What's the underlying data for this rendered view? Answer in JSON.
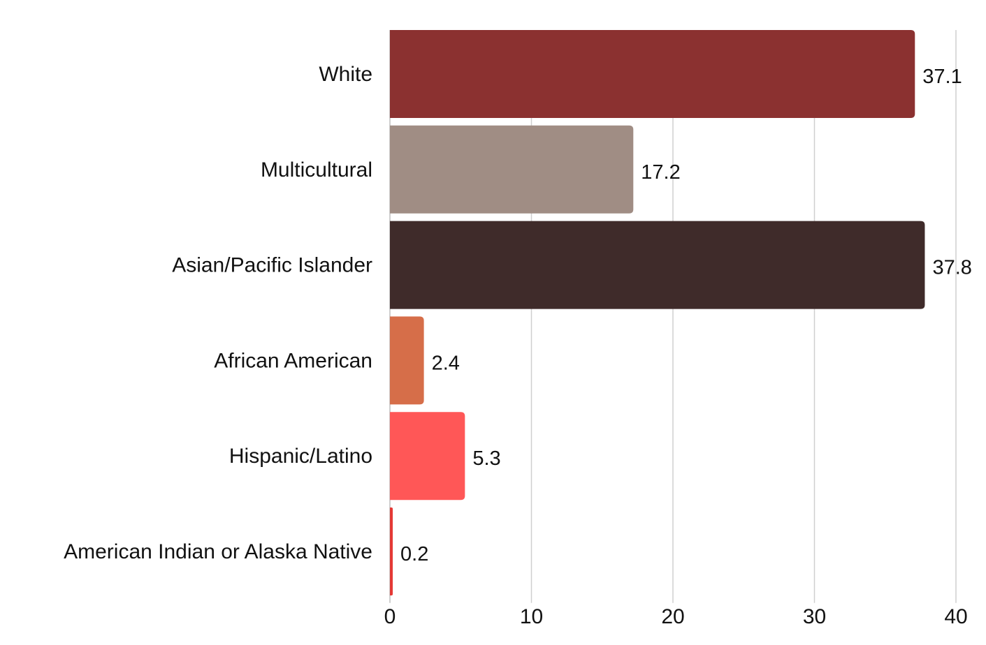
{
  "chart_data": {
    "type": "bar",
    "orientation": "horizontal",
    "title": "",
    "xlabel": "",
    "ylabel": "",
    "categories": [
      "White",
      "Multicultural",
      "Asian/Pacific Islander",
      "African American",
      "Hispanic/Latino",
      "American Indian or Alaska Native"
    ],
    "values": [
      37.1,
      17.2,
      37.8,
      2.4,
      5.3,
      0.2
    ],
    "value_labels": [
      "37.1",
      "17.2",
      "37.8",
      "2.4",
      "5.3",
      "0.2"
    ],
    "colors": [
      "#8b3130",
      "#a08d84",
      "#3f2b2a",
      "#d66e49",
      "#ff5757",
      "#e53935"
    ],
    "xlim": [
      0,
      40
    ],
    "xticks": [
      0,
      10,
      20,
      30,
      40
    ],
    "xtick_labels": [
      "0",
      "10",
      "20",
      "30",
      "40"
    ],
    "grid": "vertical",
    "legend": "none"
  }
}
